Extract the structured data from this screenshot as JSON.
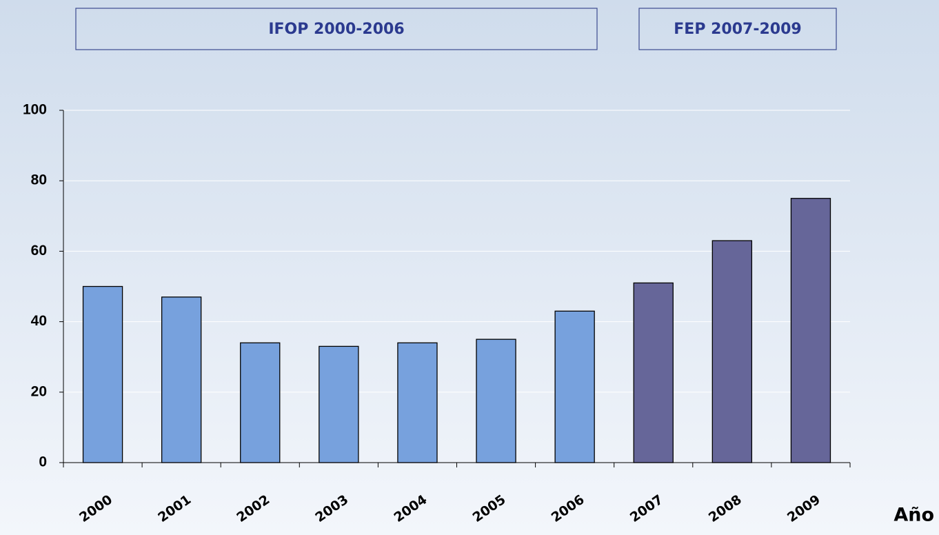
{
  "chart_data": {
    "type": "bar",
    "annotations": [
      "IFOP 2000-2006",
      "FEP 2007-2009"
    ],
    "x_label": "Año",
    "categories": [
      "2000",
      "2001",
      "2002",
      "2003",
      "2004",
      "2005",
      "2006",
      "2007",
      "2008",
      "2009"
    ],
    "values": [
      50,
      47,
      34,
      33,
      34,
      35,
      43,
      51,
      63,
      75
    ],
    "colors": [
      "#77a1dd",
      "#77a1dd",
      "#77a1dd",
      "#77a1dd",
      "#77a1dd",
      "#77a1dd",
      "#77a1dd",
      "#666699",
      "#666699",
      "#666699"
    ],
    "ylim": [
      0,
      100
    ],
    "yticks": [
      0,
      20,
      40,
      60,
      80,
      100
    ],
    "grid": true
  }
}
